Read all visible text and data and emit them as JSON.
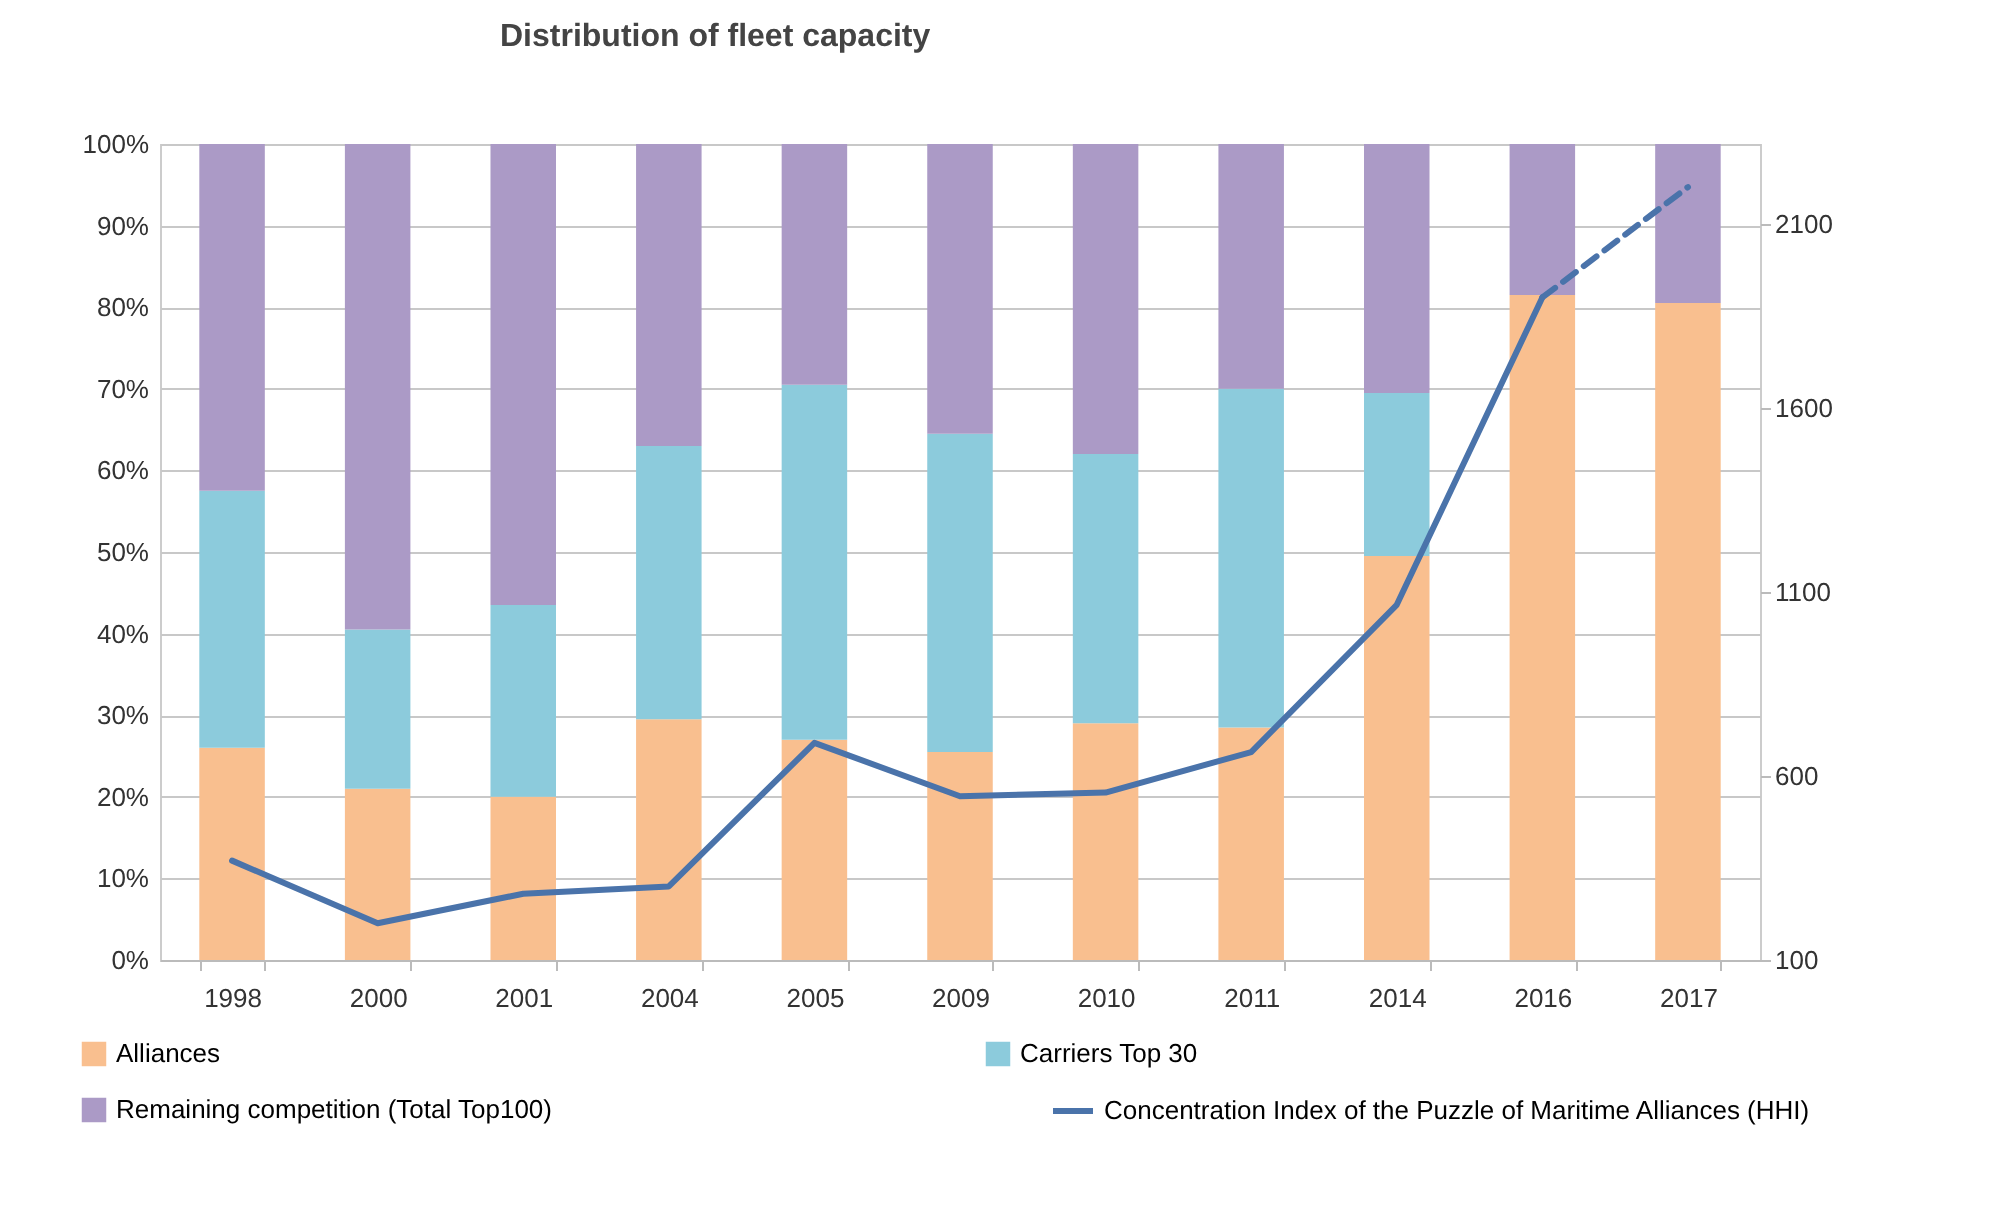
{
  "chart_data": {
    "type": "bar",
    "title": "Distribution of fleet capacity",
    "stacked": true,
    "categories": [
      "1998",
      "2000",
      "2001",
      "2004",
      "2005",
      "2009",
      "2010",
      "2011",
      "2014",
      "2016",
      "2017"
    ],
    "series": [
      {
        "name": "Alliances",
        "color": "#f9bf8f",
        "values": [
          26,
          21,
          20,
          29.5,
          27,
          25.5,
          29,
          28.5,
          49.5,
          81.5,
          80.5
        ]
      },
      {
        "name": "Carriers Top 30",
        "color": "#8ccbdc",
        "values": [
          31.5,
          19.5,
          23.5,
          33.5,
          43.5,
          39,
          33,
          41.5,
          20,
          0,
          0
        ]
      },
      {
        "name": "Remaining competition (Total Top100)",
        "color": "#ab9ac6",
        "values": [
          42.5,
          59.5,
          56.5,
          37,
          29.5,
          35.5,
          38,
          30,
          30.5,
          18.5,
          19.5
        ]
      },
      {
        "name": "Concentration Index of the Puzzle of Maritime Alliances (HHI)",
        "type": "line",
        "axis": "y2",
        "color": "#4a73aa",
        "line_style": "solid",
        "values": [
          370,
          200,
          280,
          300,
          690,
          545,
          555,
          665,
          1065,
          1900,
          null
        ]
      },
      {
        "type": "line",
        "axis": "y2",
        "color": "#4a73aa",
        "line_style": "dashed",
        "values": [
          null,
          null,
          null,
          null,
          null,
          null,
          null,
          null,
          null,
          1900,
          2200
        ]
      }
    ],
    "ylim": [
      0,
      100
    ],
    "yticks": [
      {
        "value": 0,
        "label": "0%"
      },
      {
        "value": 10,
        "label": "10%"
      },
      {
        "value": 20,
        "label": "20%"
      },
      {
        "value": 30,
        "label": "30%"
      },
      {
        "value": 40,
        "label": "40%"
      },
      {
        "value": 50,
        "label": "50%"
      },
      {
        "value": 60,
        "label": "60%"
      },
      {
        "value": 70,
        "label": "70%"
      },
      {
        "value": 80,
        "label": "80%"
      },
      {
        "value": 90,
        "label": "90%"
      },
      {
        "value": 100,
        "label": "100%"
      }
    ],
    "y2lim": [
      100,
      2317
    ],
    "y2ticks": [
      100,
      600,
      1100,
      1600,
      2100
    ],
    "grid": "y",
    "legend": "bottom"
  }
}
